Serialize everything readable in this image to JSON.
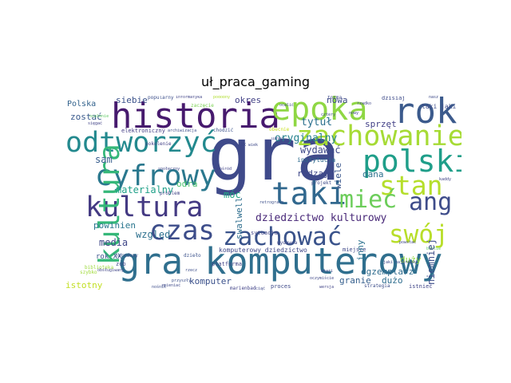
{
  "title": "uł_praca_gaming",
  "words": [
    {
      "text": "gra",
      "color": "#3f4a8a"
    },
    {
      "text": "gra komputerowy",
      "color": "#2f6f8e"
    },
    {
      "text": "historia",
      "color": "#471a6e"
    },
    {
      "text": "rok",
      "color": "#3b5a8c"
    },
    {
      "text": "epoka",
      "color": "#8fd744"
    },
    {
      "text": "zachowanie",
      "color": "#a6db35"
    },
    {
      "text": "odtworzyć",
      "color": "#23898e"
    },
    {
      "text": "polski",
      "color": "#1f9e89"
    },
    {
      "text": "cyfrowy",
      "color": "#2a788e"
    },
    {
      "text": "stan",
      "color": "#b5de2b"
    },
    {
      "text": "taki",
      "color": "#31688e"
    },
    {
      "text": "kultura",
      "color": "#35b779"
    },
    {
      "text": "rozgrywka",
      "color": "#443a83"
    },
    {
      "text": "mieć",
      "color": "#6ccd5a"
    },
    {
      "text": "ang",
      "color": "#3e4c8a"
    },
    {
      "text": "czas",
      "color": "#3d4d8a"
    },
    {
      "text": "swój",
      "color": "#b8de29"
    },
    {
      "text": "zachować",
      "color": "#3a538b"
    },
    {
      "text": "tytuł",
      "color": "#2c718e"
    },
    {
      "text": "oryginalny",
      "color": "#26828e"
    },
    {
      "text": "wydawać",
      "color": "#3e4989"
    },
    {
      "text": "sprzęt",
      "color": "#424086"
    },
    {
      "text": "dziedzictwo kulturowy",
      "color": "#482878"
    },
    {
      "text": "materialny",
      "color": "#1fa088"
    },
    {
      "text": "siebie",
      "color": "#3b528b"
    },
    {
      "text": "zostać",
      "color": "#38598c"
    },
    {
      "text": "sam",
      "color": "#365c8d"
    },
    {
      "text": "odra",
      "color": "#4ac16d"
    },
    {
      "text": "móc",
      "color": "#22a884"
    },
    {
      "text": "względ",
      "color": "#2d708e"
    },
    {
      "text": "media",
      "color": "#3f4788"
    },
    {
      "text": "powinien",
      "color": "#2a768e"
    },
    {
      "text": "komputer",
      "color": "#3b518b"
    },
    {
      "text": "istotny",
      "color": "#c2df23"
    },
    {
      "text": "granie",
      "color": "#355f8d"
    },
    {
      "text": "dużo",
      "color": "#2e6d8e"
    },
    {
      "text": "egzemplarz",
      "color": "#2f6c8e"
    },
    {
      "text": "niemniej",
      "color": "#3d4e8a"
    },
    {
      "text": "nowa",
      "color": "#3e4a89"
    },
    {
      "text": "wiele",
      "color": "#39568c"
    },
    {
      "text": "rodzaj",
      "color": "#3f4889"
    },
    {
      "text": "dana",
      "color": "#2d718e"
    },
    {
      "text": "duży",
      "color": "#90d743"
    },
    {
      "text": "inny",
      "color": "#2c728e"
    },
    {
      "text": "swalwell",
      "color": "#2e6e8e"
    },
    {
      "text": "okres",
      "color": "#424186"
    },
    {
      "text": "Polska",
      "color": "#33638d"
    },
    {
      "text": "rok XX",
      "color": "#3a548c"
    },
    {
      "text": "instytucja",
      "color": "#2f6b8e"
    },
    {
      "text": "elektroniczny",
      "color": "#433e85"
    },
    {
      "text": "popularny",
      "color": "#3c4f8a"
    },
    {
      "text": "zob",
      "color": "#3e4a89"
    },
    {
      "text": "platforma",
      "color": "#414487"
    },
    {
      "text": "komputerowy dziedzictwo",
      "color": "#3f4788"
    },
    {
      "text": "sytuacja",
      "color": "#404588"
    },
    {
      "text": "taki jaki",
      "color": "#3d4d8a"
    },
    {
      "text": "dzisiaj",
      "color": "#3e4b8a"
    },
    {
      "text": "forma",
      "color": "#3e4989"
    },
    {
      "text": "problem",
      "color": "#404387"
    },
    {
      "text": "pokolenie",
      "color": "#424086"
    },
    {
      "text": "chodzić",
      "color": "#3b518b"
    },
    {
      "text": "projekt",
      "color": "#3e4c8a"
    },
    {
      "text": "miejsce",
      "color": "#3f4889"
    },
    {
      "text": "proces",
      "color": "#3e4a89"
    },
    {
      "text": "strategia",
      "color": "#3d4e8a"
    },
    {
      "text": "istnieć",
      "color": "#404588"
    },
    {
      "text": "narodowy",
      "color": "#3c508b"
    },
    {
      "text": "dzieło",
      "color": "#3b528b"
    },
    {
      "text": "marienbad",
      "color": "#414287"
    },
    {
      "text": "wydawca",
      "color": "#3f4788"
    },
    {
      "text": "zaczęcie",
      "color": "#7ad151"
    },
    {
      "text": "podobny",
      "color": "#b0dd2f"
    },
    {
      "text": "obecnie",
      "color": "#c8e020"
    },
    {
      "text": "szybko",
      "color": "#a0da39"
    },
    {
      "text": "biblioteka",
      "color": "#9bd93c"
    },
    {
      "text": "ocalenie",
      "color": "#5ec962"
    },
    {
      "text": "kaddy",
      "color": "#404588"
    },
    {
      "text": "nasz",
      "color": "#3e4a89"
    },
    {
      "text": "atari",
      "color": "#3f4788"
    },
    {
      "text": "XX wiek",
      "color": "#3e4989"
    },
    {
      "text": "nośnik",
      "color": "#3d4d8a"
    },
    {
      "text": "wersja",
      "color": "#404387"
    },
    {
      "text": "ciąć",
      "color": "#3f4889"
    },
    {
      "text": "retrogracz",
      "color": "#3c4f8a"
    },
    {
      "text": "cztery",
      "color": "#3d4e8a"
    },
    {
      "text": "ocalić",
      "color": "#3e4b8a"
    },
    {
      "text": "rzadko",
      "color": "#404588"
    },
    {
      "text": "powstać",
      "color": "#3f4788"
    },
    {
      "text": "pośród",
      "color": "#414487"
    },
    {
      "text": "zmieniać",
      "color": "#3e4a89"
    },
    {
      "text": "archiwizacja",
      "color": "#3d4d8a"
    },
    {
      "text": "informatyka",
      "color": "#404387"
    },
    {
      "text": "społeczny",
      "color": "#3f4889"
    },
    {
      "text": "przyszły",
      "color": "#3c508b"
    },
    {
      "text": "jaki najprawdy",
      "color": "#3e4b8a"
    },
    {
      "text": "obsługiwany",
      "color": "#404588"
    },
    {
      "text": "oczymiście",
      "color": "#3f4788"
    },
    {
      "text": "sięgać",
      "color": "#414287"
    },
    {
      "text": "uznać",
      "color": "#3e4989"
    },
    {
      "text": "rzecz",
      "color": "#3d4e8a"
    },
    {
      "text": "nowy",
      "color": "#3f4889"
    },
    {
      "text": "biblie",
      "color": "#5ec962"
    }
  ]
}
